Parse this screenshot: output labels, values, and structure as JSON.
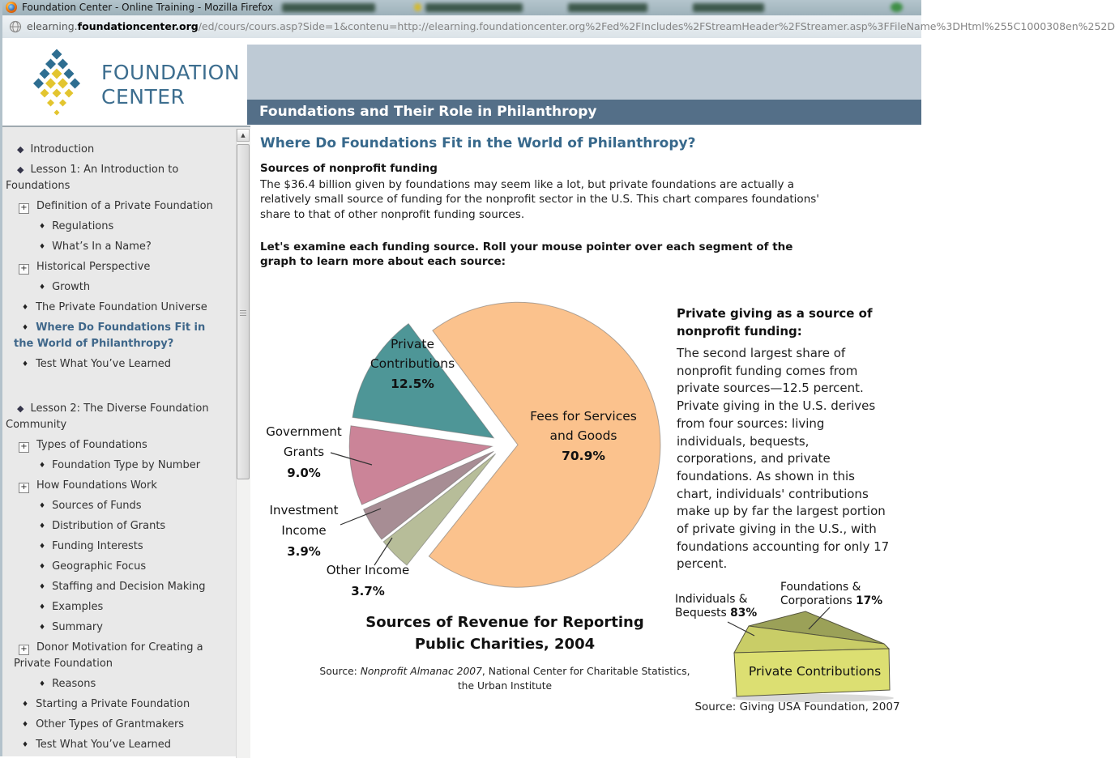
{
  "browser": {
    "window_title": "Foundation Center - Online Training - Mozilla Firefox",
    "url": {
      "subdomain": "elearning.",
      "domain": "foundationcenter.org",
      "path": "/ed/cours/cours.asp?Side=1&contenu=http://elearning.foundationcenter.org%2Fed%2FIncludes%2FStreamHeader%2FStreamer.asp%3FFileName%3DHtml%255C1000308en%252D"
    }
  },
  "header": {
    "logo_line1": "FOUNDATION",
    "logo_line2": "CENTER",
    "logo_blue": "#2e6e91",
    "logo_gold": "#e3c52f",
    "course_title": "Foundations and Their Role in Philanthropy"
  },
  "sidebar": {
    "items": [
      {
        "label": "Introduction",
        "icon": "diamond",
        "level": 0
      },
      {
        "label": "Lesson 1: An Introduction to\nFoundations",
        "icon": "diamond",
        "level": 0
      },
      {
        "label": "Definition of a Private Foundation",
        "icon": "plus",
        "level": 1
      },
      {
        "label": "Regulations",
        "icon": "bullet",
        "level": 2
      },
      {
        "label": "What’s In a Name?",
        "icon": "bullet",
        "level": 2
      },
      {
        "label": "Historical Perspective",
        "icon": "plus",
        "level": 1
      },
      {
        "label": "Growth",
        "icon": "bullet",
        "level": 2
      },
      {
        "label": "The Private Foundation Universe",
        "icon": "bullet",
        "level": 1
      },
      {
        "label": "Where Do Foundations Fit in\nthe World of Philanthropy?",
        "icon": "bullet",
        "level": 1,
        "active": true
      },
      {
        "label": "Test What You’ve Learned",
        "icon": "bullet",
        "level": 1
      },
      {
        "label": "Lesson 2: The Diverse Foundation\nCommunity",
        "icon": "diamond",
        "level": 0,
        "gap_before": true
      },
      {
        "label": "Types of Foundations",
        "icon": "plus",
        "level": 1
      },
      {
        "label": "Foundation Type by Number",
        "icon": "bullet",
        "level": 2
      },
      {
        "label": "How Foundations Work",
        "icon": "plus",
        "level": 1
      },
      {
        "label": "Sources of Funds",
        "icon": "bullet",
        "level": 2
      },
      {
        "label": "Distribution of Grants",
        "icon": "bullet",
        "level": 2
      },
      {
        "label": "Funding Interests",
        "icon": "bullet",
        "level": 2
      },
      {
        "label": "Geographic Focus",
        "icon": "bullet",
        "level": 2
      },
      {
        "label": "Staffing and Decision Making",
        "icon": "bullet",
        "level": 2
      },
      {
        "label": "Examples",
        "icon": "bullet",
        "level": 2
      },
      {
        "label": "Summary",
        "icon": "bullet",
        "level": 2
      },
      {
        "label": "Donor Motivation for Creating a\nPrivate Foundation",
        "icon": "plus",
        "level": 1
      },
      {
        "label": "Reasons",
        "icon": "bullet",
        "level": 2
      },
      {
        "label": "Starting a Private Foundation",
        "icon": "bullet",
        "level": 1
      },
      {
        "label": "Other Types of Grantmakers",
        "icon": "bullet",
        "level": 1
      },
      {
        "label": "Test What You’ve Learned",
        "icon": "bullet",
        "level": 1
      }
    ]
  },
  "main": {
    "page_title": "Where Do Foundations Fit in the World of Philanthropy?",
    "intro_heading": "Sources of nonprofit funding",
    "intro_text": "The $36.4 billion given by foundations may seem like a lot, but private foundations are actually a relatively small source of funding for the nonprofit sector in the U.S. This chart compares foundations' share to that of other nonprofit funding sources.",
    "instruction_text": "Let's examine each funding source. Roll your mouse pointer over each segment of the graph to learn more about each source:"
  },
  "side_panel": {
    "heading": "Private giving as a source of nonprofit funding:",
    "body": "The second largest share of nonprofit funding comes from private sources—12.5 percent. Private giving in the U.S. derives from four sources: living individuals, bequests, corporations, and private foundations. As shown in this chart, individuals' contributions make up by far the largest portion of private giving in the U.S., with foundations accounting for only 17 percent."
  },
  "chart_data": [
    {
      "type": "pie",
      "exploded": true,
      "start_angle_deg": 126.7,
      "direction": "ccw",
      "title": "Sources of Revenue for Reporting\nPublic Charities, 2004",
      "source_prefix": "Source: ",
      "source_italic": "Nonprofit Almanac 2007",
      "source_suffix": ", National Center for Charitable Statistics, the Urban Institute",
      "legend_position": "none",
      "slices": [
        {
          "label": "Private Contributions",
          "label_lines": "Private\nContributions",
          "value": 12.5,
          "pct": "12.5%",
          "color": "#4E9697",
          "label_placement": "inside"
        },
        {
          "label": "Government Grants",
          "label_lines": "Government\nGrants",
          "value": 9.0,
          "pct": "9.0%",
          "color": "#CB8498",
          "label_placement": "outside"
        },
        {
          "label": "Investment Income",
          "label_lines": "Investment\nIncome",
          "value": 3.9,
          "pct": "3.9%",
          "color": "#A78D94",
          "label_placement": "outside"
        },
        {
          "label": "Other Income",
          "label_lines": "Other Income",
          "value": 3.7,
          "pct": "3.7%",
          "color": "#B7BD99",
          "label_placement": "outside"
        },
        {
          "label": "Fees for Services and Goods",
          "label_lines": "Fees for Services\nand Goods",
          "value": 70.9,
          "pct": "70.9%",
          "color": "#FBC28D",
          "label_placement": "inside"
        }
      ]
    },
    {
      "type": "pie",
      "style": "3d-wedge",
      "wedge_face_label": "Private Contributions",
      "source": "Source: Giving USA Foundation, 2007",
      "front_color": "#DCDF72",
      "slices": [
        {
          "label": "Individuals & Bequests",
          "value": 83,
          "pct": "83%",
          "color": "#C9CD67"
        },
        {
          "label": "Foundations & Corporations",
          "value": 17,
          "pct": "17%",
          "color": "#9BA158"
        }
      ],
      "label_83_text": "Individuals & Bequests ",
      "label_17_text": "Foundations & Corporations "
    }
  ]
}
